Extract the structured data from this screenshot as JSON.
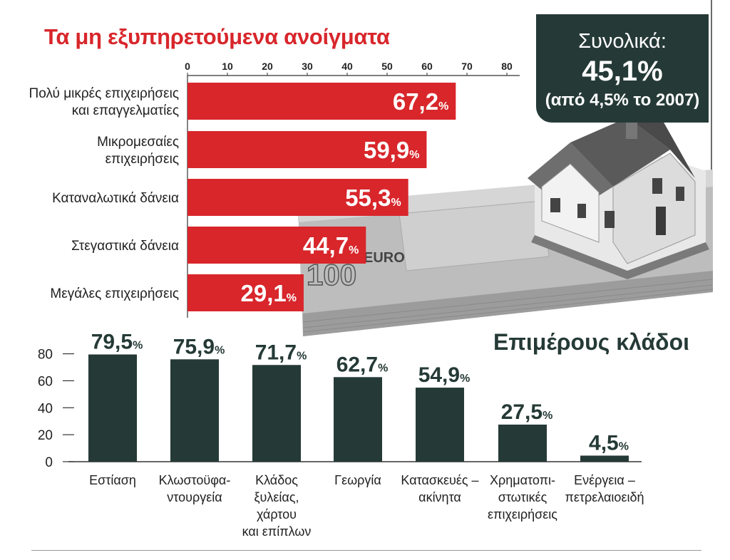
{
  "title": "Τα μη εξυπηρετούμενα ανοίγματα",
  "total": {
    "label": "Συνολικά:",
    "value": "45,1%",
    "note": "(από 4,5% το 2007)"
  },
  "section_title": "Επιμέρους κλάδοι",
  "colors": {
    "red": "#d8262b",
    "dark": "#253a36"
  },
  "chart_data": [
    {
      "type": "bar",
      "orientation": "horizontal",
      "title": "Τα μη εξυπηρετούμενα ανοίγματα",
      "xlim": [
        0,
        80
      ],
      "xticks": [
        0,
        10,
        20,
        30,
        40,
        50,
        60,
        70,
        80
      ],
      "categories": [
        [
          "Πολύ μικρές επιχειρήσεις",
          "και επαγγελματίες"
        ],
        [
          "Μικρομεσαίες",
          "επιχειρήσεις"
        ],
        [
          "Καταναλωτικά δάνεια"
        ],
        [
          "Στεγαστικά δάνεια"
        ],
        [
          "Μεγάλες επιχειρήσεις"
        ]
      ],
      "values": [
        67.2,
        59.9,
        55.3,
        44.7,
        29.1
      ],
      "value_labels": [
        "67,2",
        "59,9",
        "55,3",
        "44,7",
        "29,1"
      ],
      "unit": "%",
      "color": "#d8262b"
    },
    {
      "type": "bar",
      "orientation": "vertical",
      "title": "Επιμέρους κλάδοι",
      "ylim": [
        0,
        80
      ],
      "yticks": [
        0,
        20,
        40,
        60,
        80
      ],
      "categories": [
        [
          "Εστίαση"
        ],
        [
          "Κλωστοϋφα-",
          "ντουργεία"
        ],
        [
          "Κλάδος",
          "ξυλείας,",
          "χάρτου",
          "και επίπλων"
        ],
        [
          "Γεωργία"
        ],
        [
          "Κατασκευές –",
          "ακίνητα"
        ],
        [
          "Χρηματοπι-",
          "στωτικές",
          "επιχειρήσεις"
        ],
        [
          "Ενέργεια –",
          "πετρελαιοειδή"
        ]
      ],
      "values": [
        79.5,
        75.9,
        71.7,
        62.7,
        54.9,
        27.5,
        4.5
      ],
      "value_labels": [
        "79,5",
        "75,9",
        "71,7",
        "62,7",
        "54,9",
        "27,5",
        "4,5"
      ],
      "unit": "%",
      "color": "#253a36"
    }
  ]
}
